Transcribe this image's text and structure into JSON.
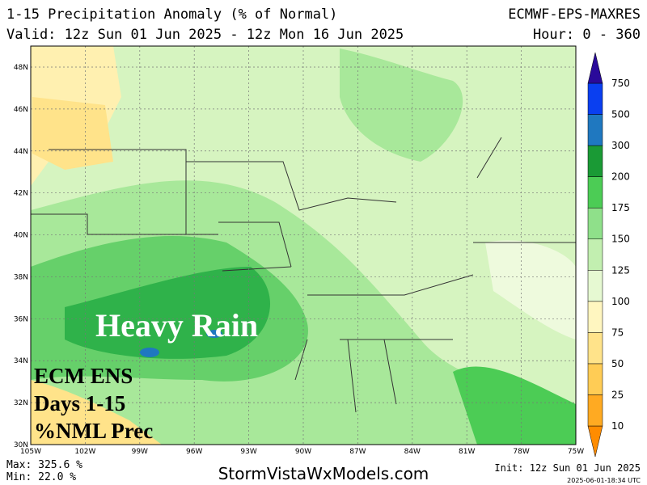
{
  "header": {
    "title": "1-15 Precipitation Anomaly (% of Normal)",
    "model": "ECMWF-EPS-MAXRES",
    "valid": "Valid: 12z Sun 01 Jun 2025 - 12z Mon 16 Jun 2025",
    "hour": "Hour: 0 - 360"
  },
  "map": {
    "lat_labels": [
      "48N",
      "46N",
      "44N",
      "42N",
      "40N",
      "38N",
      "36N",
      "34N",
      "32N",
      "30N"
    ],
    "lon_labels": [
      "105W",
      "102W",
      "99W",
      "96W",
      "93W",
      "90W",
      "87W",
      "84W",
      "81W",
      "78W",
      "75W"
    ],
    "overlay": {
      "headline": "Heavy Rain",
      "caption": [
        "ECM ENS",
        "Days 1-15",
        "%NML Prec"
      ]
    }
  },
  "colorbar": {
    "levels": [
      10,
      25,
      50,
      75,
      100,
      125,
      150,
      175,
      200,
      300,
      500,
      750
    ],
    "colors": [
      "#ff8c00",
      "#ffaa22",
      "#ffcc55",
      "#ffe38a",
      "#fff6c0",
      "#e6f9d2",
      "#c2efb0",
      "#8fe08a",
      "#4ccc55",
      "#1a9a35",
      "#1f78c0",
      "#0a3ff0",
      "#2a0a9a"
    ]
  },
  "footer": {
    "max": "Max: 325.6 %",
    "min": "Min: 22.0 %",
    "site": "StormVistaWxModels.com",
    "init": "Init: 12z Sun 01 Jun 2025",
    "stamp": "2025-06-01-18:34 UTC"
  }
}
